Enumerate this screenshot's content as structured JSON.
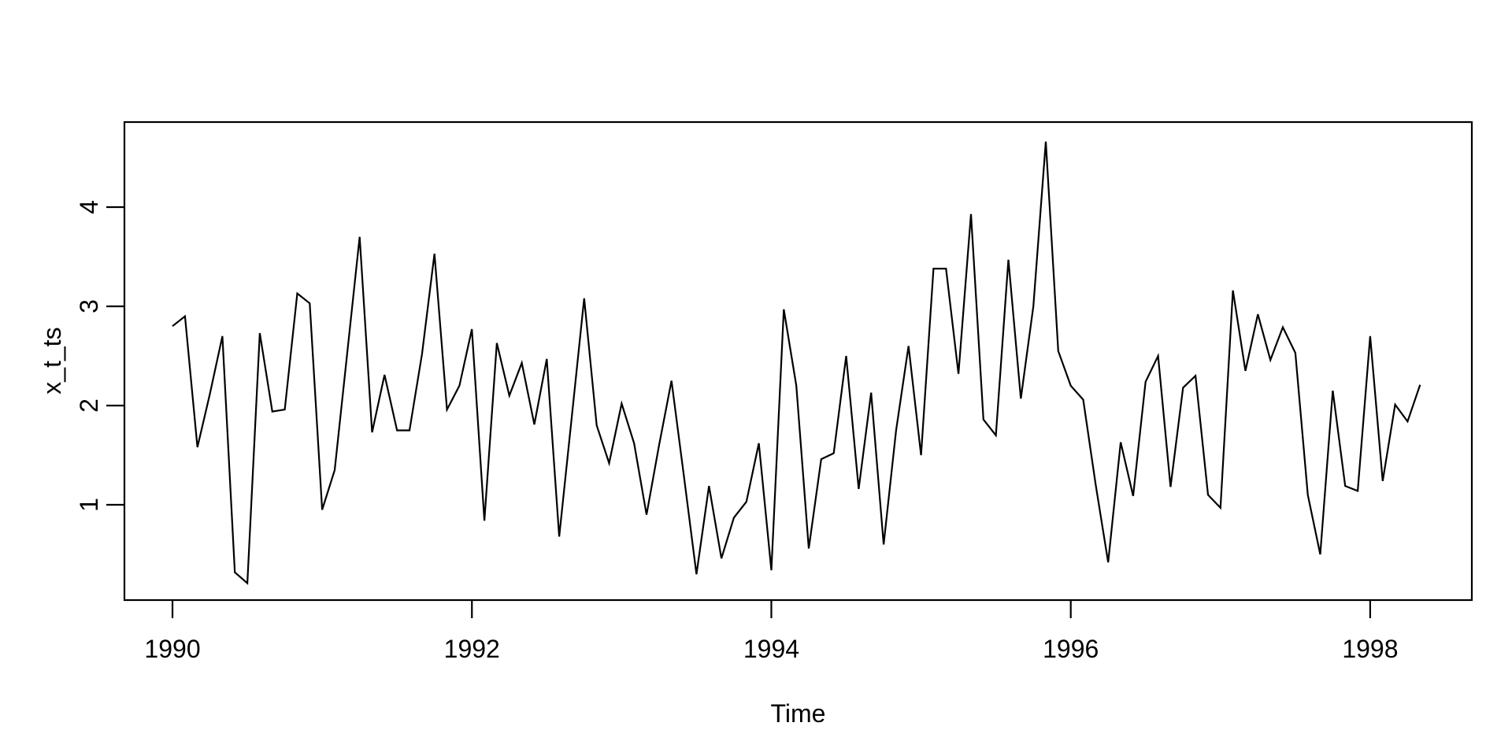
{
  "chart_data": {
    "type": "line",
    "title": "",
    "xlabel": "Time",
    "ylabel": "x_t_ts",
    "series": [
      {
        "name": "x_t_ts",
        "start_year": 1990,
        "start_period": 1,
        "frequency": 12,
        "values": [
          2.8,
          2.9,
          1.58,
          2.12,
          2.7,
          0.32,
          0.21,
          2.73,
          1.94,
          1.96,
          3.13,
          3.03,
          0.95,
          1.35,
          2.52,
          3.7,
          1.73,
          2.31,
          1.75,
          1.75,
          2.52,
          3.53,
          1.96,
          2.2,
          2.77,
          0.84,
          2.63,
          2.1,
          2.43,
          1.81,
          2.47,
          0.68,
          1.88,
          3.08,
          1.8,
          1.42,
          2.02,
          1.62,
          0.9,
          1.6,
          2.25,
          1.28,
          0.3,
          1.19,
          0.46,
          0.87,
          1.03,
          1.62,
          0.34,
          2.97,
          2.2,
          0.56,
          1.46,
          1.52,
          2.5,
          1.16,
          2.13,
          0.6,
          1.75,
          2.6,
          1.5,
          3.38,
          3.38,
          2.32,
          3.93,
          1.86,
          1.7,
          3.47,
          2.07,
          3.0,
          4.66,
          2.55,
          2.2,
          2.06,
          1.2,
          0.42,
          1.63,
          1.09,
          2.24,
          2.5,
          1.18,
          2.18,
          2.3,
          1.1,
          0.97,
          3.16,
          2.35,
          2.92,
          2.46,
          2.79,
          2.53,
          1.1,
          0.5,
          2.15,
          1.19,
          1.14,
          2.7,
          1.24,
          2.01,
          1.84,
          2.21
        ]
      }
    ],
    "x_ticks": [
      1990,
      1992,
      1994,
      1996,
      1998
    ],
    "y_ticks": [
      1,
      2,
      3,
      4
    ],
    "xlim": [
      1989.679,
      1998.679
    ],
    "ylim": [
      0.04,
      4.857
    ],
    "grid": false,
    "legend_position": "none",
    "line_color": "#000000",
    "axis_color": "#000000",
    "background_color": "#ffffff"
  }
}
